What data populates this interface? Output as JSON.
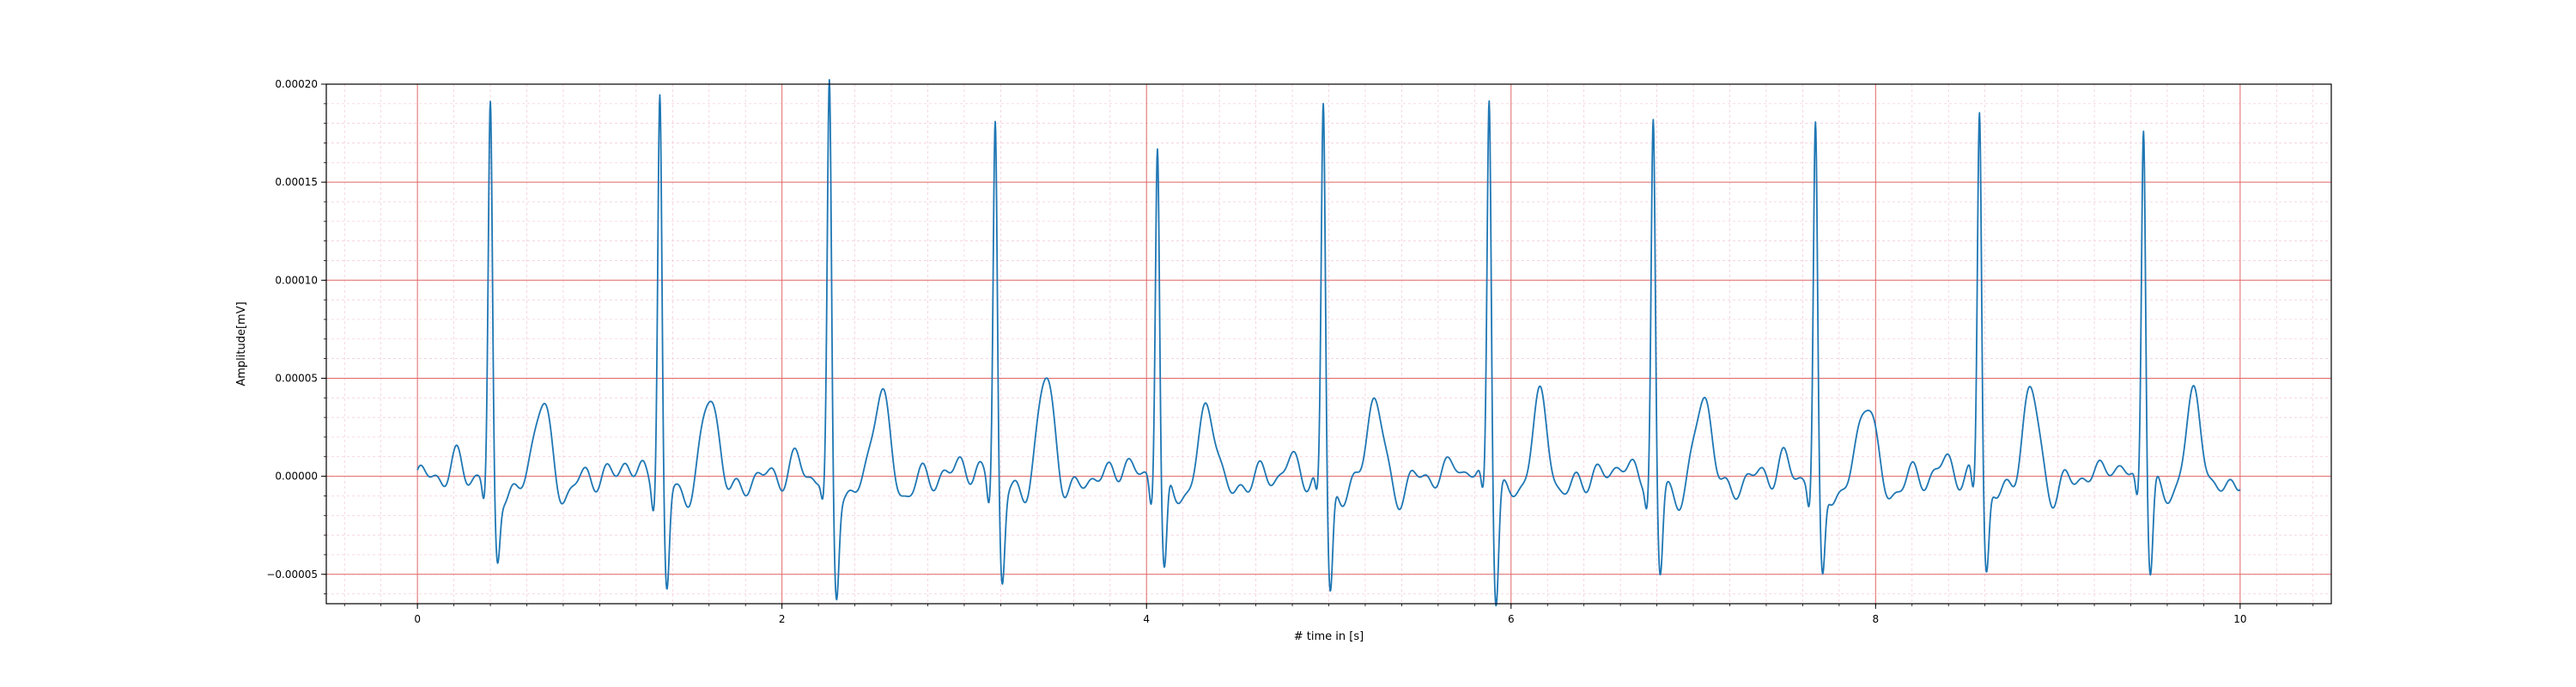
{
  "chart_data": {
    "type": "line",
    "xlabel": "# time in [s]",
    "ylabel": "Amplitude[mV]",
    "xlim": [
      -0.5,
      10.5
    ],
    "ylim": [
      -6.5e-05,
      0.0002
    ],
    "xticks": [
      0,
      2,
      4,
      6,
      8,
      10
    ],
    "xtick_labels": [
      "0",
      "2",
      "4",
      "6",
      "8",
      "10"
    ],
    "yticks": [
      -5e-05,
      0,
      5e-05,
      0.0001,
      0.00015,
      0.0002
    ],
    "ytick_labels": [
      "−0.00005",
      "0.00000",
      "0.00005",
      "0.00010",
      "0.00015",
      "0.00020"
    ],
    "grid": {
      "major": true,
      "minor": true,
      "major_color": "#e06666",
      "minor_color": "#f3c6d6"
    },
    "series": [
      {
        "color": "#1f77b4",
        "r_peaks": [
          {
            "t": 0.4,
            "peak": 0.000178,
            "s": -3.4e-05,
            "t_wave": 2.9e-05
          },
          {
            "t": 1.33,
            "peak": 0.000188,
            "s": -5e-05,
            "t_wave": 3.1e-05
          },
          {
            "t": 2.26,
            "peak": 0.000187,
            "s": -5.1e-05,
            "t_wave": 3.5e-05
          },
          {
            "t": 3.17,
            "peak": 0.000175,
            "s": -4.4e-05,
            "t_wave": 4e-05
          },
          {
            "t": 4.06,
            "peak": 0.000165,
            "s": -4.4e-05,
            "t_wave": 2.7e-05
          },
          {
            "t": 4.97,
            "peak": 0.000181,
            "s": -5.1e-05,
            "t_wave": 3.1e-05
          },
          {
            "t": 5.88,
            "peak": 0.000188,
            "s": -5.2e-05,
            "t_wave": 2.9e-05
          },
          {
            "t": 6.78,
            "peak": 0.000173,
            "s": -4.2e-05,
            "t_wave": 3.2e-05
          },
          {
            "t": 7.67,
            "peak": 0.000169,
            "s": -4.6e-05,
            "t_wave": 3.2e-05
          },
          {
            "t": 8.57,
            "peak": 0.00018,
            "s": -3.9e-05,
            "t_wave": 3.4e-05
          },
          {
            "t": 9.47,
            "peak": 0.000174,
            "s": -4e-05,
            "t_wave": 3.1e-05
          }
        ],
        "x_start": 0,
        "x_end": 10,
        "baseline": 0
      }
    ]
  }
}
